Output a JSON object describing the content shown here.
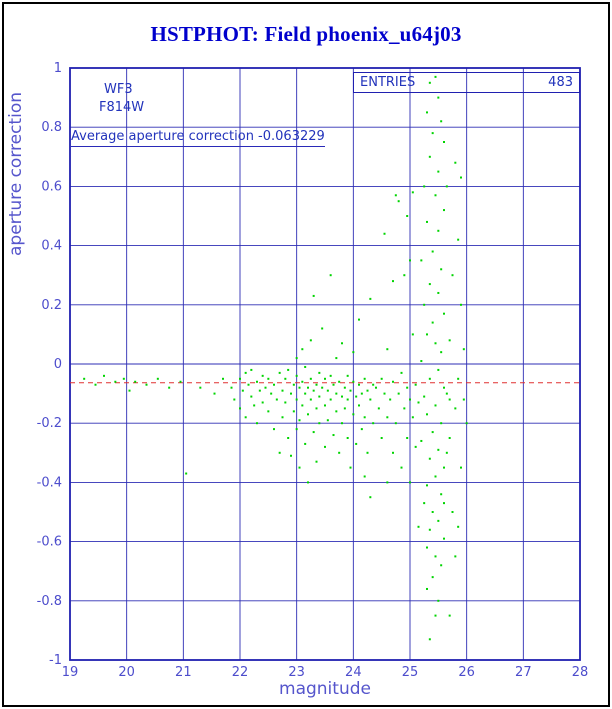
{
  "header": {
    "title": "HSTPHOT: Field phoenix_u64j03"
  },
  "annotations": {
    "camera": "WF3",
    "filter": "F814W",
    "average_label": "Average aperture correction -0.063229",
    "entries_label": "ENTRIES",
    "entries_value": "483"
  },
  "chart_data": {
    "type": "scatter",
    "title": "HSTPHOT: Field phoenix_u64j03",
    "xlabel": "magnitude",
    "ylabel": "aperture correction",
    "xlim": [
      19,
      28
    ],
    "ylim": [
      -1,
      1
    ],
    "grid": true,
    "legend": "none",
    "entries": 483,
    "average_line_y": -0.063229,
    "x_ticks": {
      "values": [
        19,
        20,
        21,
        22,
        23,
        24,
        25,
        26,
        27,
        28
      ],
      "labels": [
        "19",
        "20",
        "21",
        "22",
        "23",
        "24",
        "25",
        "26",
        "27",
        "28"
      ]
    },
    "y_ticks": {
      "values": [
        1,
        0.8,
        0.6,
        0.4,
        0.2,
        0,
        -0.2,
        -0.4,
        -0.6,
        -0.8,
        -1
      ],
      "labels": [
        "1",
        "0.8",
        "0.6",
        "0.4",
        "0.2",
        "0",
        "-0.2",
        "-0.4",
        "-0.6",
        "-0.8",
        "-1"
      ]
    },
    "colors": {
      "grid": "#2d2db4",
      "frame": "#2020b0",
      "points": "#00d400",
      "average_line": "#e03030",
      "text": "#2233bb",
      "title": "#0000cc"
    },
    "points": [
      [
        19.25,
        -0.05
      ],
      [
        19.45,
        -0.07
      ],
      [
        19.6,
        -0.04
      ],
      [
        19.8,
        -0.06
      ],
      [
        19.95,
        -0.05
      ],
      [
        20.05,
        -0.09
      ],
      [
        20.15,
        -0.06
      ],
      [
        20.35,
        -0.07
      ],
      [
        20.55,
        -0.05
      ],
      [
        20.75,
        -0.08
      ],
      [
        20.95,
        -0.06
      ],
      [
        21.05,
        -0.37
      ],
      [
        21.3,
        -0.08
      ],
      [
        21.55,
        -0.1
      ],
      [
        21.7,
        -0.05
      ],
      [
        21.85,
        -0.08
      ],
      [
        21.9,
        -0.12
      ],
      [
        22.0,
        -0.05
      ],
      [
        22.0,
        -0.15
      ],
      [
        22.05,
        -0.09
      ],
      [
        22.1,
        -0.03
      ],
      [
        22.1,
        -0.18
      ],
      [
        22.15,
        -0.07
      ],
      [
        22.2,
        -0.11
      ],
      [
        22.2,
        -0.02
      ],
      [
        22.25,
        -0.14
      ],
      [
        22.3,
        -0.06
      ],
      [
        22.3,
        -0.2
      ],
      [
        22.35,
        -0.09
      ],
      [
        22.4,
        -0.04
      ],
      [
        22.4,
        -0.13
      ],
      [
        22.45,
        -0.08
      ],
      [
        22.5,
        -0.16
      ],
      [
        22.5,
        -0.05
      ],
      [
        22.55,
        -0.1
      ],
      [
        22.6,
        -0.07
      ],
      [
        22.6,
        -0.22
      ],
      [
        22.65,
        -0.12
      ],
      [
        22.7,
        -0.03
      ],
      [
        22.7,
        -0.3
      ],
      [
        22.75,
        -0.09
      ],
      [
        22.75,
        -0.18
      ],
      [
        22.8,
        -0.05
      ],
      [
        22.8,
        -0.13
      ],
      [
        22.85,
        -0.25
      ],
      [
        22.85,
        -0.02
      ],
      [
        22.9,
        -0.1
      ],
      [
        22.9,
        -0.31
      ],
      [
        22.95,
        -0.07
      ],
      [
        22.95,
        -0.16
      ],
      [
        23.0,
        -0.04
      ],
      [
        23.0,
        -0.12
      ],
      [
        23.0,
        -0.22
      ],
      [
        23.0,
        0.02
      ],
      [
        23.05,
        -0.08
      ],
      [
        23.05,
        -0.19
      ],
      [
        23.05,
        -0.35
      ],
      [
        23.1,
        -0.06
      ],
      [
        23.1,
        -0.14
      ],
      [
        23.1,
        0.05
      ],
      [
        23.15,
        -0.1
      ],
      [
        23.15,
        -0.27
      ],
      [
        23.15,
        -0.01
      ],
      [
        23.2,
        -0.08
      ],
      [
        23.2,
        -0.17
      ],
      [
        23.2,
        -0.4
      ],
      [
        23.25,
        -0.05
      ],
      [
        23.25,
        -0.12
      ],
      [
        23.25,
        0.08
      ],
      [
        23.3,
        -0.09
      ],
      [
        23.3,
        -0.23
      ],
      [
        23.3,
        0.23
      ],
      [
        23.35,
        -0.07
      ],
      [
        23.35,
        -0.15
      ],
      [
        23.35,
        -0.33
      ],
      [
        23.4,
        -0.03
      ],
      [
        23.4,
        -0.11
      ],
      [
        23.4,
        -0.2
      ],
      [
        23.45,
        -0.08
      ],
      [
        23.45,
        0.12
      ],
      [
        23.5,
        -0.05
      ],
      [
        23.5,
        -0.14
      ],
      [
        23.5,
        -0.28
      ],
      [
        23.55,
        -0.09
      ],
      [
        23.55,
        -0.19
      ],
      [
        23.6,
        -0.04
      ],
      [
        23.6,
        -0.12
      ],
      [
        23.6,
        0.3
      ],
      [
        23.65,
        -0.07
      ],
      [
        23.65,
        -0.24
      ],
      [
        23.7,
        -0.1
      ],
      [
        23.7,
        -0.16
      ],
      [
        23.7,
        0.02
      ],
      [
        23.75,
        -0.06
      ],
      [
        23.75,
        -0.3
      ],
      [
        23.8,
        -0.11
      ],
      [
        23.8,
        -0.2
      ],
      [
        23.8,
        0.07
      ],
      [
        23.85,
        -0.08
      ],
      [
        23.85,
        -0.15
      ],
      [
        23.9,
        -0.04
      ],
      [
        23.9,
        -0.25
      ],
      [
        23.9,
        -0.12
      ],
      [
        23.95,
        -0.09
      ],
      [
        23.95,
        -0.35
      ],
      [
        24.0,
        -0.06
      ],
      [
        24.0,
        -0.17
      ],
      [
        24.0,
        0.04
      ],
      [
        24.05,
        -0.11
      ],
      [
        24.05,
        -0.27
      ],
      [
        24.1,
        -0.07
      ],
      [
        24.1,
        -0.14
      ],
      [
        24.1,
        0.15
      ],
      [
        24.15,
        -0.1
      ],
      [
        24.15,
        -0.22
      ],
      [
        24.2,
        -0.05
      ],
      [
        24.2,
        -0.18
      ],
      [
        24.2,
        -0.38
      ],
      [
        24.25,
        -0.09
      ],
      [
        24.25,
        -0.3
      ],
      [
        24.3,
        -0.12
      ],
      [
        24.3,
        0.22
      ],
      [
        24.3,
        -0.45
      ],
      [
        24.35,
        -0.07
      ],
      [
        24.35,
        -0.2
      ],
      [
        24.4,
        -0.08
      ],
      [
        24.45,
        -0.15
      ],
      [
        24.5,
        -0.05
      ],
      [
        24.5,
        -0.25
      ],
      [
        24.55,
        -0.1
      ],
      [
        24.55,
        0.44
      ],
      [
        24.6,
        -0.18
      ],
      [
        24.6,
        0.05
      ],
      [
        24.6,
        -0.4
      ],
      [
        24.65,
        -0.12
      ],
      [
        24.7,
        -0.3
      ],
      [
        24.7,
        -0.06
      ],
      [
        24.7,
        0.28
      ],
      [
        24.75,
        -0.2
      ],
      [
        24.75,
        0.57
      ],
      [
        24.8,
        -0.1
      ],
      [
        24.8,
        0.55
      ],
      [
        24.85,
        -0.35
      ],
      [
        24.85,
        -0.03
      ],
      [
        24.9,
        -0.15
      ],
      [
        24.9,
        0.3
      ],
      [
        24.95,
        -0.25
      ],
      [
        24.95,
        -0.08
      ],
      [
        24.95,
        0.5
      ],
      [
        25.0,
        -0.12
      ],
      [
        25.0,
        -0.4
      ],
      [
        25.0,
        0.35
      ],
      [
        25.05,
        -0.18
      ],
      [
        25.05,
        0.1
      ],
      [
        25.05,
        0.58
      ],
      [
        25.1,
        -0.28
      ],
      [
        25.1,
        -0.07
      ],
      [
        25.15,
        -0.55
      ],
      [
        25.15,
        -0.13
      ],
      [
        25.2,
        0.35
      ],
      [
        25.2,
        0.01
      ],
      [
        25.2,
        -0.26
      ],
      [
        25.25,
        0.6
      ],
      [
        25.25,
        0.2
      ],
      [
        25.25,
        -0.11
      ],
      [
        25.25,
        -0.47
      ],
      [
        25.3,
        0.85
      ],
      [
        25.3,
        0.48
      ],
      [
        25.3,
        0.1
      ],
      [
        25.3,
        -0.17
      ],
      [
        25.3,
        -0.41
      ],
      [
        25.3,
        -0.62
      ],
      [
        25.3,
        -0.76
      ],
      [
        25.35,
        0.95
      ],
      [
        25.35,
        0.7
      ],
      [
        25.35,
        0.27
      ],
      [
        25.35,
        -0.05
      ],
      [
        25.35,
        -0.32
      ],
      [
        25.35,
        -0.56
      ],
      [
        25.35,
        -0.93
      ],
      [
        25.4,
        0.78
      ],
      [
        25.4,
        0.38
      ],
      [
        25.4,
        0.14
      ],
      [
        25.4,
        -0.23
      ],
      [
        25.4,
        -0.5
      ],
      [
        25.4,
        -0.72
      ],
      [
        25.45,
        0.97
      ],
      [
        25.45,
        0.57
      ],
      [
        25.45,
        0.07
      ],
      [
        25.45,
        -0.14
      ],
      [
        25.45,
        -0.38
      ],
      [
        25.45,
        -0.65
      ],
      [
        25.45,
        -0.85
      ],
      [
        25.5,
        0.9
      ],
      [
        25.5,
        0.65
      ],
      [
        25.5,
        0.45
      ],
      [
        25.5,
        0.24
      ],
      [
        25.5,
        -0.02
      ],
      [
        25.5,
        -0.29
      ],
      [
        25.5,
        -0.53
      ],
      [
        25.5,
        -0.8
      ],
      [
        25.55,
        0.82
      ],
      [
        25.55,
        0.32
      ],
      [
        25.55,
        0.04
      ],
      [
        25.55,
        -0.2
      ],
      [
        25.55,
        -0.44
      ],
      [
        25.55,
        -0.68
      ],
      [
        25.6,
        0.75
      ],
      [
        25.6,
        0.52
      ],
      [
        25.6,
        0.17
      ],
      [
        25.6,
        -0.08
      ],
      [
        25.6,
        -0.35
      ],
      [
        25.6,
        -0.59
      ],
      [
        25.6,
        -0.47
      ],
      [
        25.65,
        -0.1
      ],
      [
        25.65,
        0.6
      ],
      [
        25.65,
        -0.3
      ],
      [
        25.7,
        -0.25
      ],
      [
        25.7,
        0.08
      ],
      [
        25.7,
        -0.85
      ],
      [
        25.7,
        -0.12
      ],
      [
        25.75,
        -0.5
      ],
      [
        25.75,
        0.3
      ],
      [
        25.8,
        -0.15
      ],
      [
        25.8,
        -0.65
      ],
      [
        25.8,
        0.68
      ],
      [
        25.85,
        -0.05
      ],
      [
        25.85,
        0.42
      ],
      [
        25.85,
        -0.55
      ],
      [
        25.9,
        0.63
      ],
      [
        25.9,
        -0.35
      ],
      [
        25.9,
        0.2
      ],
      [
        25.95,
        -0.12
      ],
      [
        25.95,
        0.05
      ],
      [
        26.0,
        -0.2
      ]
    ]
  }
}
